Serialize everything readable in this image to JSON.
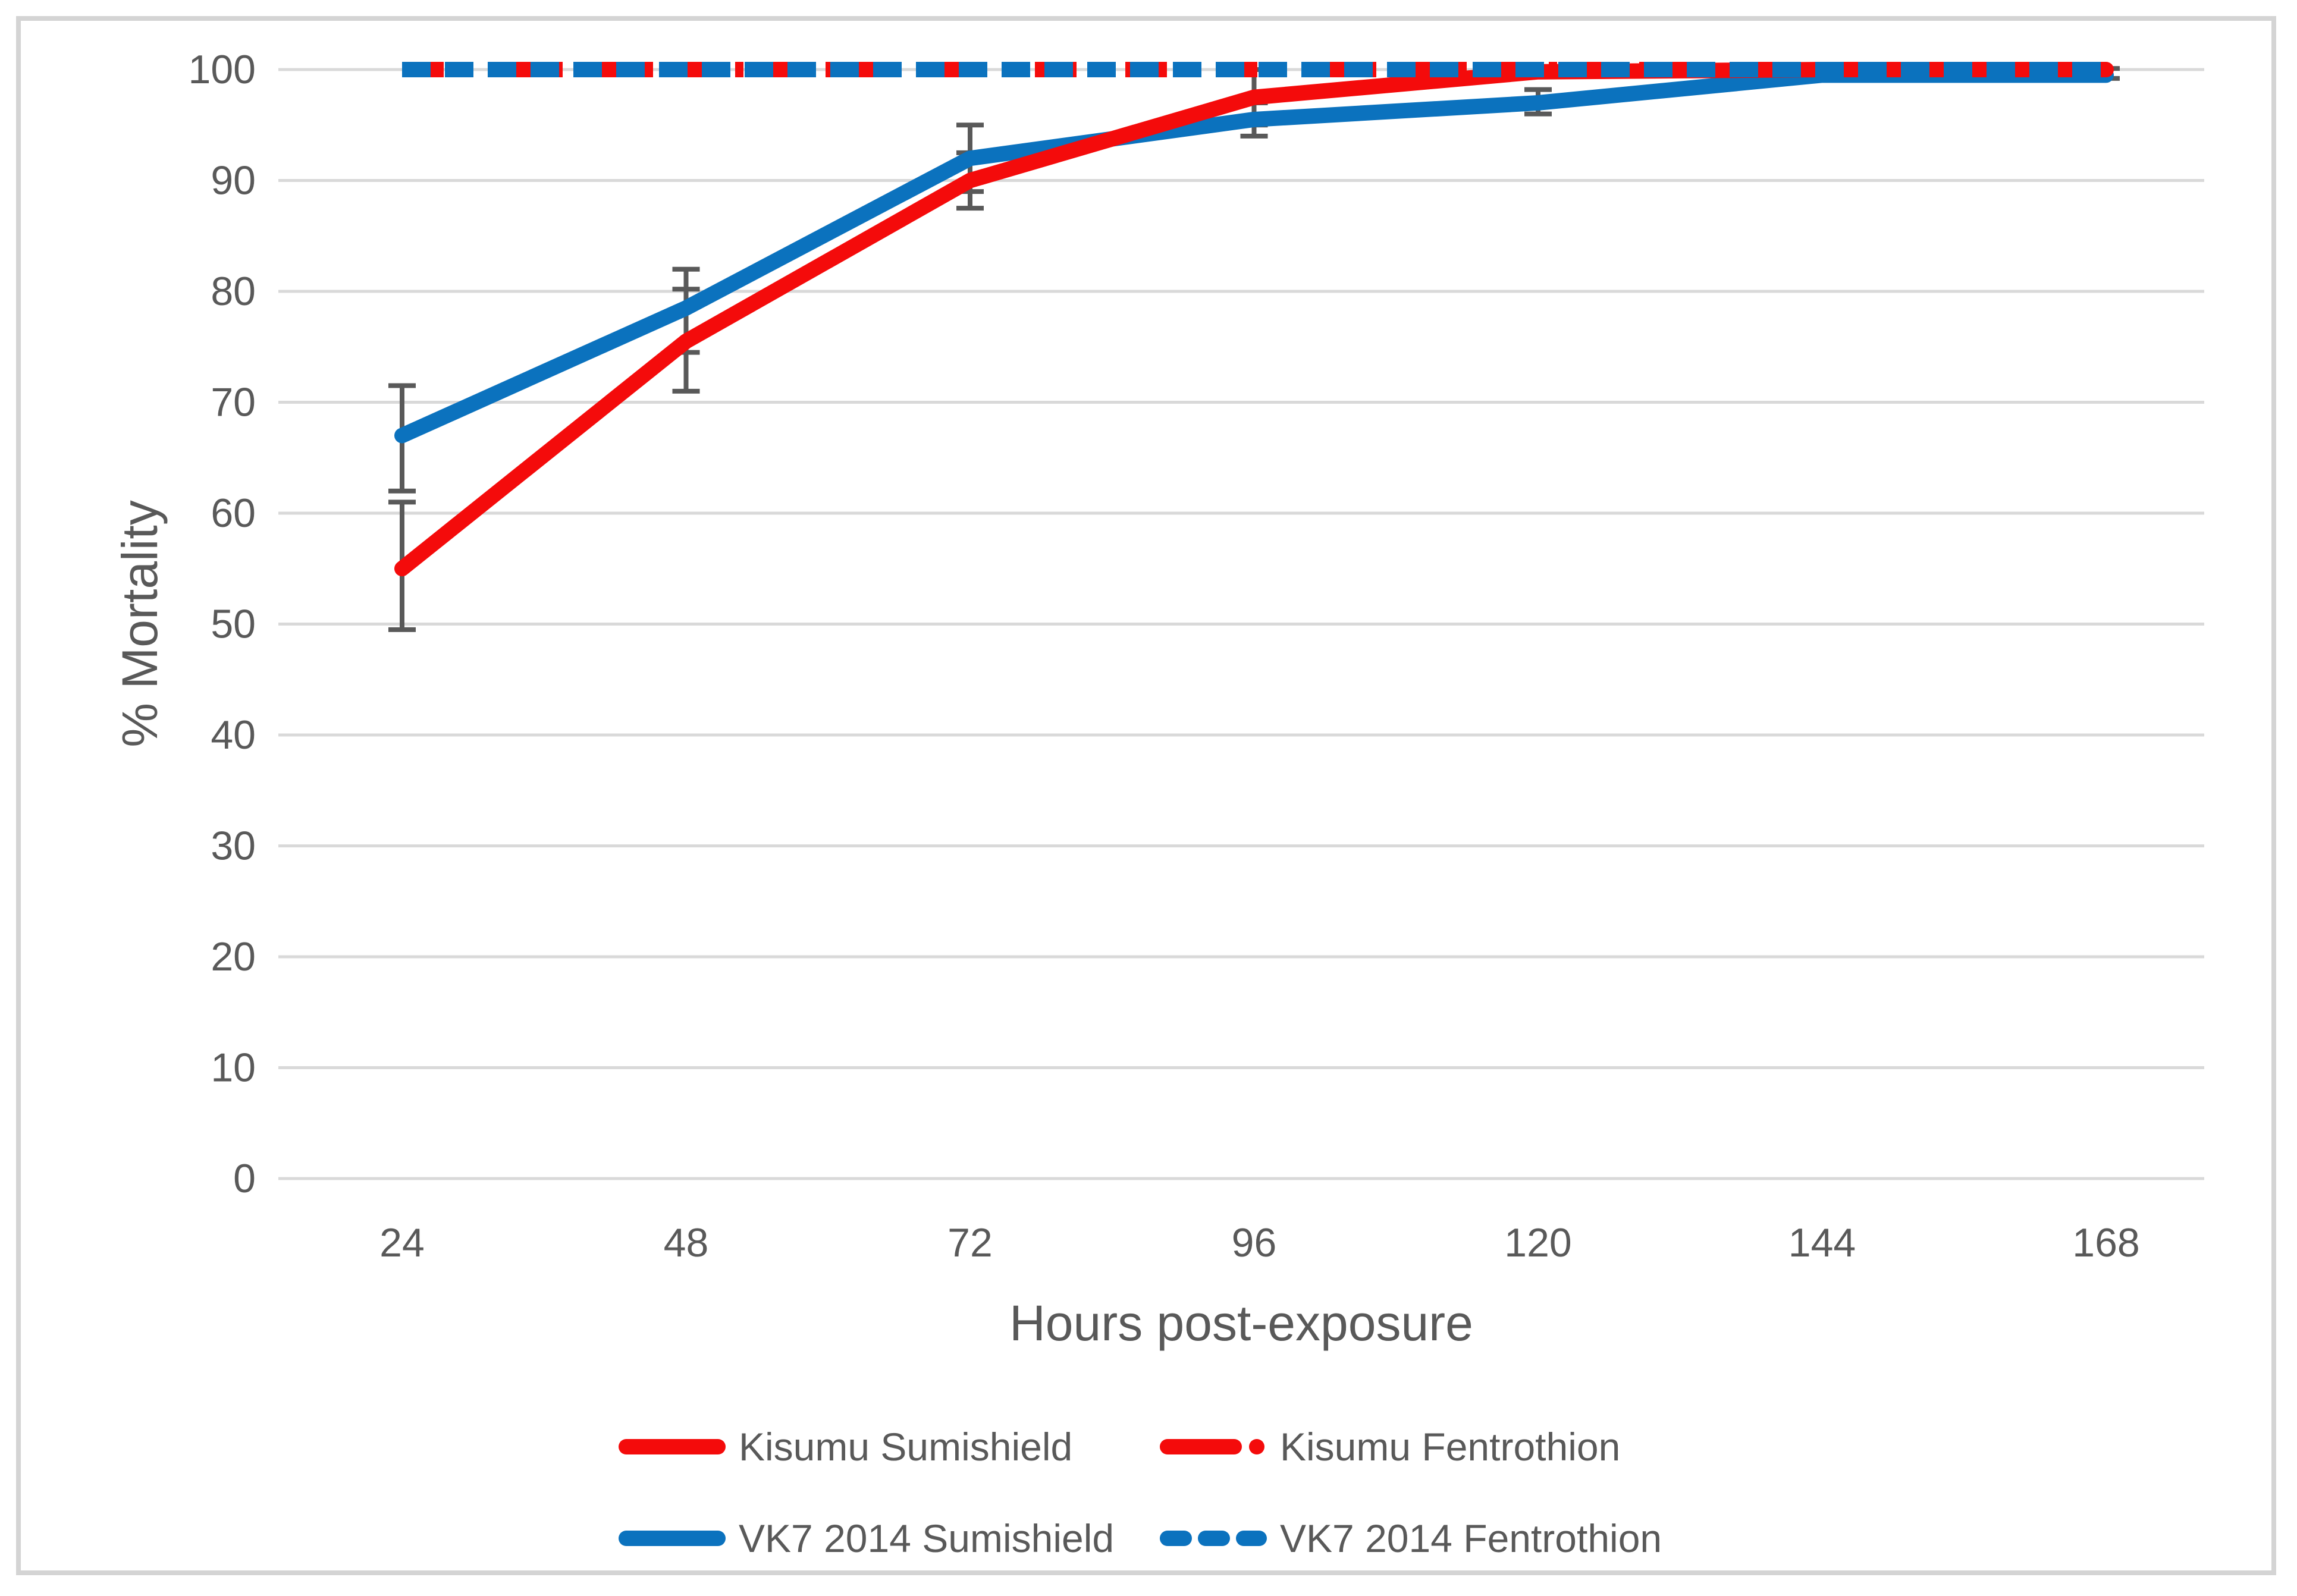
{
  "chart_data": {
    "type": "line",
    "title": "",
    "xlabel": "Hours post-exposure",
    "ylabel": "% Mortality",
    "categories": [
      24,
      48,
      72,
      96,
      120,
      144,
      168
    ],
    "yticks": [
      0,
      10,
      20,
      30,
      40,
      50,
      60,
      70,
      80,
      90,
      100
    ],
    "ylim": [
      0,
      100
    ],
    "grid": "horizontal",
    "legend_position": "bottom",
    "series": [
      {
        "name": "Kisumu Sumishield",
        "color": "#f40b0b",
        "style": "solid",
        "values": [
          55,
          75.5,
          90,
          97.5,
          99.8,
          100,
          100
        ],
        "error_bars": [
          [
            49.5,
            61
          ],
          [
            71,
            80.2
          ],
          [
            87.5,
            92.5
          ],
          [
            95,
            100
          ],
          null,
          null,
          null
        ]
      },
      {
        "name": "Kisumu Fentrothion",
        "color": "#f40b0b",
        "style": "dash-dot",
        "values": [
          100,
          100,
          100,
          100,
          100,
          100,
          100
        ],
        "error_bars": null
      },
      {
        "name": "VK7 2014 Sumishield",
        "color": "#0b72be",
        "style": "solid",
        "values": [
          67,
          78.5,
          92,
          95.5,
          97,
          99.5,
          99.5
        ],
        "error_bars": [
          [
            62,
            71.5
          ],
          [
            74.5,
            82
          ],
          [
            89,
            95
          ],
          [
            94,
            97
          ],
          [
            96,
            98.2
          ],
          null,
          [
            99.2,
            100.1
          ]
        ]
      },
      {
        "name": "VK7 2014 Fentrothion",
        "color": "#0b72be",
        "style": "dashed",
        "values": [
          100,
          100,
          100,
          100,
          100,
          100,
          100
        ],
        "error_bars": null
      }
    ],
    "colors": {
      "gridline": "#d9d9d9",
      "axis_text": "#595959",
      "error_bar": "#595959",
      "border": "#d4d4d4",
      "background": "#ffffff"
    }
  }
}
